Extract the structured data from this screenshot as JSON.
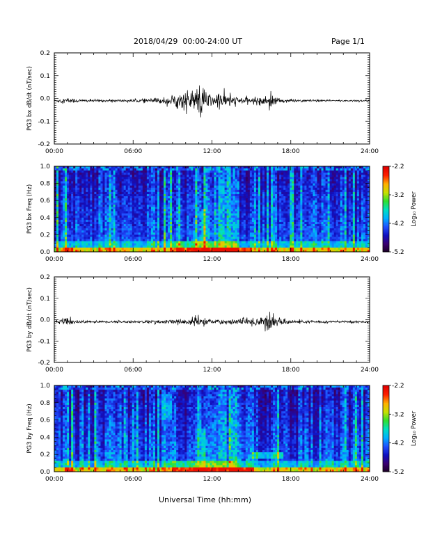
{
  "header": {
    "date_range": "2018/04/29  00:00-24:00 UT",
    "page": "Page 1/1"
  },
  "colors": {
    "line": "#000000",
    "frame": "#000000",
    "colormap": [
      "#1a0020",
      "#3a0070",
      "#1010c0",
      "#2050ff",
      "#00b0ff",
      "#00e0c0",
      "#30e030",
      "#c8e000",
      "#ffb000",
      "#ff2000",
      "#e00000"
    ]
  },
  "xlabel": "Universal Time (hh:mm)",
  "chart_data": [
    {
      "type": "line",
      "ylabel": "PG3 bx dB/dt (nT/sec)",
      "xlim": [
        0,
        24
      ],
      "ylim": [
        -0.2,
        0.2
      ],
      "x_ticks": [
        "00:00",
        "06:00",
        "12:00",
        "18:00",
        "24:00"
      ],
      "y_ticks": [
        "0.2",
        "0.1",
        "0.0",
        "-0.1",
        "-0.2"
      ],
      "series": [
        {
          "x": [
            0,
            1,
            2,
            3,
            4,
            5,
            6,
            7,
            8,
            8.5,
            9,
            9.5,
            10,
            10.5,
            11,
            11.5,
            12,
            12.5,
            13,
            13.5,
            14,
            15,
            16,
            16.5,
            17,
            18,
            19,
            20,
            21,
            22,
            23,
            24
          ],
          "y_envelope": [
            0.004,
            0.012,
            0.006,
            0.005,
            0.005,
            0.005,
            0.006,
            0.008,
            0.012,
            0.015,
            0.025,
            0.03,
            0.04,
            0.045,
            0.055,
            0.05,
            0.02,
            0.035,
            0.03,
            0.02,
            0.015,
            0.012,
            0.018,
            0.03,
            0.012,
            0.006,
            0.005,
            0.004,
            0.004,
            0.004,
            0.004,
            0.004
          ]
        }
      ]
    },
    {
      "type": "heatmap",
      "ylabel": "PG3 bx Freq (Hz)",
      "xlim": [
        0,
        24
      ],
      "ylim": [
        0,
        1.0
      ],
      "x_ticks": [
        "00:00",
        "06:00",
        "12:00",
        "18:00",
        "24:00"
      ],
      "y_ticks": [
        "1.0",
        "0.8",
        "0.6",
        "0.4",
        "0.2",
        "0.0"
      ],
      "colorbar": {
        "label": "Log₁₀ Power",
        "ticks": [
          "-2.2",
          "-3.2",
          "-4.2",
          "-5.2"
        ],
        "range": [
          -5.2,
          -2.2
        ]
      }
    },
    {
      "type": "line",
      "ylabel": "PG3 by dB/dt (nT/sec)",
      "xlim": [
        0,
        24
      ],
      "ylim": [
        -0.2,
        0.2
      ],
      "x_ticks": [
        "00:00",
        "06:00",
        "12:00",
        "18:00",
        "24:00"
      ],
      "y_ticks": [
        "0.2",
        "0.1",
        "0.0",
        "-0.1",
        "-0.2"
      ],
      "series": [
        {
          "x": [
            0,
            1,
            2,
            3,
            4,
            5,
            6,
            7,
            8,
            9,
            10,
            10.5,
            11,
            11.5,
            12,
            12.5,
            13,
            14,
            15,
            16,
            16.5,
            17,
            18,
            19,
            20,
            21,
            22,
            23,
            24
          ],
          "y_envelope": [
            0.006,
            0.015,
            0.006,
            0.005,
            0.005,
            0.005,
            0.005,
            0.006,
            0.008,
            0.01,
            0.012,
            0.018,
            0.025,
            0.015,
            0.01,
            0.012,
            0.01,
            0.012,
            0.018,
            0.03,
            0.045,
            0.015,
            0.008,
            0.006,
            0.005,
            0.005,
            0.005,
            0.005,
            0.005
          ]
        }
      ]
    },
    {
      "type": "heatmap",
      "ylabel": "PG3 by Freq (Hz)",
      "xlim": [
        0,
        24
      ],
      "ylim": [
        0,
        1.0
      ],
      "x_ticks": [
        "00:00",
        "06:00",
        "12:00",
        "18:00",
        "24:00"
      ],
      "y_ticks": [
        "1.0",
        "0.8",
        "0.6",
        "0.4",
        "0.2",
        "0.0"
      ],
      "colorbar": {
        "label": "Log₁₀ Power",
        "ticks": [
          "-2.2",
          "-3.2",
          "-4.2",
          "-5.2"
        ],
        "range": [
          -5.2,
          -2.2
        ]
      }
    }
  ]
}
